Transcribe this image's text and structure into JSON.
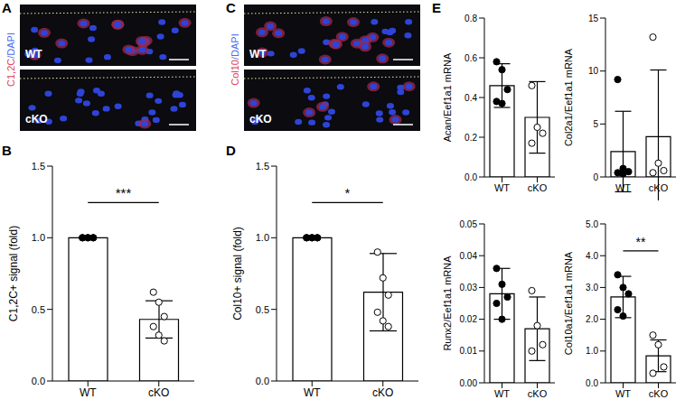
{
  "images": [
    {
      "label": "A",
      "stain": [
        {
          "text": "C1,2C",
          "color": "#e0405a"
        },
        {
          "text": "/DAPI",
          "color": "#4a6cf0"
        }
      ],
      "panels": [
        "WT",
        "cKO"
      ]
    },
    {
      "label": "C",
      "stain": [
        {
          "text": "Col10",
          "color": "#e0405a"
        },
        {
          "text": "/DAPI",
          "color": "#4a6cf0"
        }
      ],
      "panels": [
        "WT",
        "cKO"
      ]
    }
  ],
  "chart_data": [
    {
      "label": "B",
      "type": "bar",
      "ylabel": "C1,2C+ signal (fold)",
      "categories": [
        "WT",
        "cKO"
      ],
      "values": [
        1.0,
        0.43
      ],
      "error": [
        0.0,
        0.13
      ],
      "points": [
        [
          1.0,
          1.0,
          1.0,
          1.0,
          1.0,
          1.0
        ],
        [
          0.62,
          0.55,
          0.45,
          0.38,
          0.32,
          0.28
        ]
      ],
      "color": "#ffffff",
      "ylim": [
        0,
        1.5
      ],
      "yticks": [
        {
          "value": 0,
          "label": "0.0"
        },
        {
          "value": 0.5,
          "label": "0.5"
        },
        {
          "value": 1,
          "label": "1.0"
        },
        {
          "value": 1.5,
          "label": "1.5"
        }
      ],
      "significance": "***"
    },
    {
      "label": "D",
      "type": "bar",
      "ylabel": "Col10+ signal (fold)",
      "categories": [
        "WT",
        "cKO"
      ],
      "values": [
        1.0,
        0.62
      ],
      "error": [
        0.0,
        0.27
      ],
      "points": [
        [
          1.0,
          1.0,
          1.0,
          1.0,
          1.0,
          1.0
        ],
        [
          0.9,
          0.72,
          0.6,
          0.48,
          0.42,
          0.38
        ]
      ],
      "color": "#ffffff",
      "ylim": [
        0,
        1.5
      ],
      "yticks": [
        {
          "value": 0,
          "label": "0.0"
        },
        {
          "value": 0.5,
          "label": "0.5"
        },
        {
          "value": 1,
          "label": "1.0"
        },
        {
          "value": 1.5,
          "label": "1.5"
        }
      ],
      "significance": "*"
    },
    {
      "label": "E",
      "type": "bar",
      "ylabel": "Acan/Eef1a1 mRNA",
      "categories": [
        "WT",
        "cKO"
      ],
      "values": [
        0.46,
        0.3
      ],
      "error": [
        0.11,
        0.18
      ],
      "points": [
        [
          0.58,
          0.54,
          0.44,
          0.38,
          0.37
        ],
        [
          0.46,
          0.25,
          0.22,
          0.17
        ]
      ],
      "color": "#ffffff",
      "ylim": [
        0,
        0.8
      ],
      "yticks": [
        {
          "value": 0,
          "label": "0.0"
        },
        0.2,
        0.4,
        0.6,
        0.8
      ]
    },
    {
      "type": "bar",
      "ylabel": "Col2a1/Eef1a1 mRNA",
      "categories": [
        "WT",
        "cKO"
      ],
      "values": [
        2.4,
        3.8
      ],
      "error": [
        3.8,
        6.3
      ],
      "points": [
        [
          9.2,
          0.8,
          0.5,
          0.4,
          0.3
        ],
        [
          13.2,
          1.3,
          0.6,
          0.4
        ]
      ],
      "color": "#ffffff",
      "ylim": [
        0,
        15
      ],
      "yticks": [
        0,
        5,
        10,
        15
      ]
    },
    {
      "type": "bar",
      "ylabel": "Runx2/Eef1a1 mRNA",
      "categories": [
        "WT",
        "cKO"
      ],
      "values": [
        0.028,
        0.017
      ],
      "error": [
        0.008,
        0.01
      ],
      "points": [
        [
          0.036,
          0.031,
          0.027,
          0.025,
          0.02
        ],
        [
          0.029,
          0.018,
          0.012,
          0.01
        ]
      ],
      "color": "#ffffff",
      "ylim": [
        0,
        0.05
      ],
      "yticks": [
        {
          "value": 0,
          "label": "0.00"
        },
        0.01,
        0.02,
        0.03,
        0.04,
        0.05
      ]
    },
    {
      "type": "bar",
      "ylabel": "Col10a1/Eef1a1 mRNA",
      "categories": [
        "WT",
        "cKO"
      ],
      "values": [
        2.7,
        0.85
      ],
      "error": [
        0.65,
        0.5
      ],
      "points": [
        [
          3.4,
          3.0,
          2.8,
          2.3,
          2.1
        ],
        [
          1.5,
          1.2,
          0.5,
          0.3
        ]
      ],
      "color": "#ffffff",
      "ylim": [
        0,
        5
      ],
      "yticks": [
        {
          "value": 0,
          "label": "0.0"
        },
        {
          "value": 1,
          "label": "1.0"
        },
        {
          "value": 2,
          "label": "2.0"
        },
        {
          "value": 3,
          "label": "3.0"
        },
        {
          "value": 4,
          "label": "4.0"
        },
        {
          "value": 5,
          "label": "5.0"
        }
      ],
      "significance": "**"
    }
  ]
}
